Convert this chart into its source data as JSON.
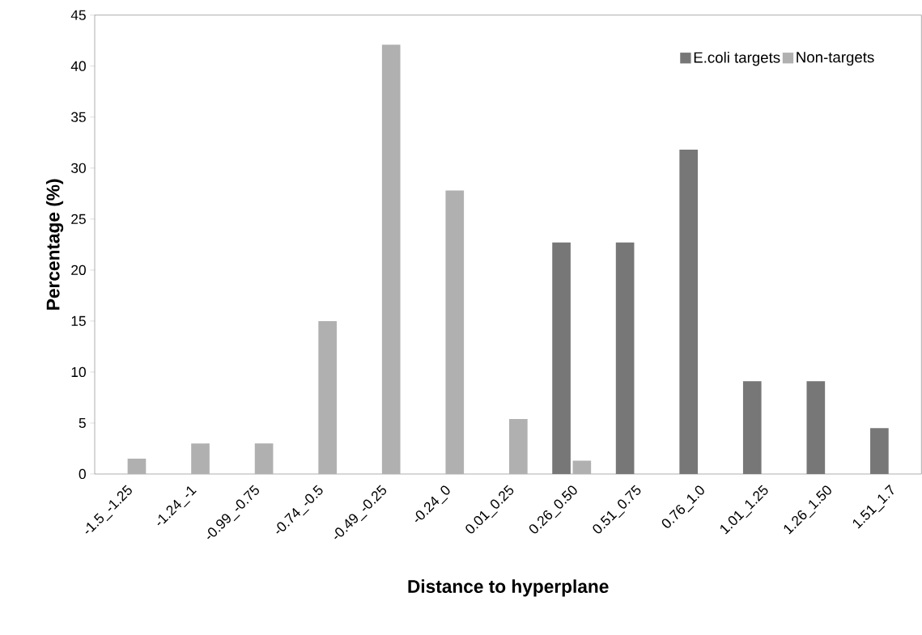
{
  "chart_data": {
    "type": "bar",
    "xlabel": "Distance to hyperplane",
    "ylabel": "Percentage (%)",
    "categories": [
      "-1.5_-1.25",
      "-1.24_-1",
      "-0.99_-0.75",
      "-0.74_-0.5",
      "-0.49_-0.25",
      "-0.24_0",
      "0.01_0.25",
      "0.26_0.50",
      "0.51_0.75",
      "0.76_1.0",
      "1.01_1.25",
      "1.26_1.50",
      "1.51_1.7"
    ],
    "series": [
      {
        "name": "E.coli targets",
        "color": "#777777",
        "values": [
          null,
          null,
          null,
          null,
          null,
          null,
          null,
          22.7,
          22.7,
          31.8,
          9.1,
          9.1,
          4.5
        ]
      },
      {
        "name": "Non-targets",
        "color": "#b0b0b0",
        "values": [
          1.5,
          3.0,
          3.0,
          15.0,
          42.1,
          27.8,
          5.4,
          1.3,
          null,
          null,
          null,
          null,
          null
        ]
      }
    ],
    "ylim": [
      0,
      45
    ],
    "yticks": [
      0,
      5,
      10,
      15,
      20,
      25,
      30,
      35,
      40,
      45
    ],
    "legend": "top right",
    "grid": false
  }
}
